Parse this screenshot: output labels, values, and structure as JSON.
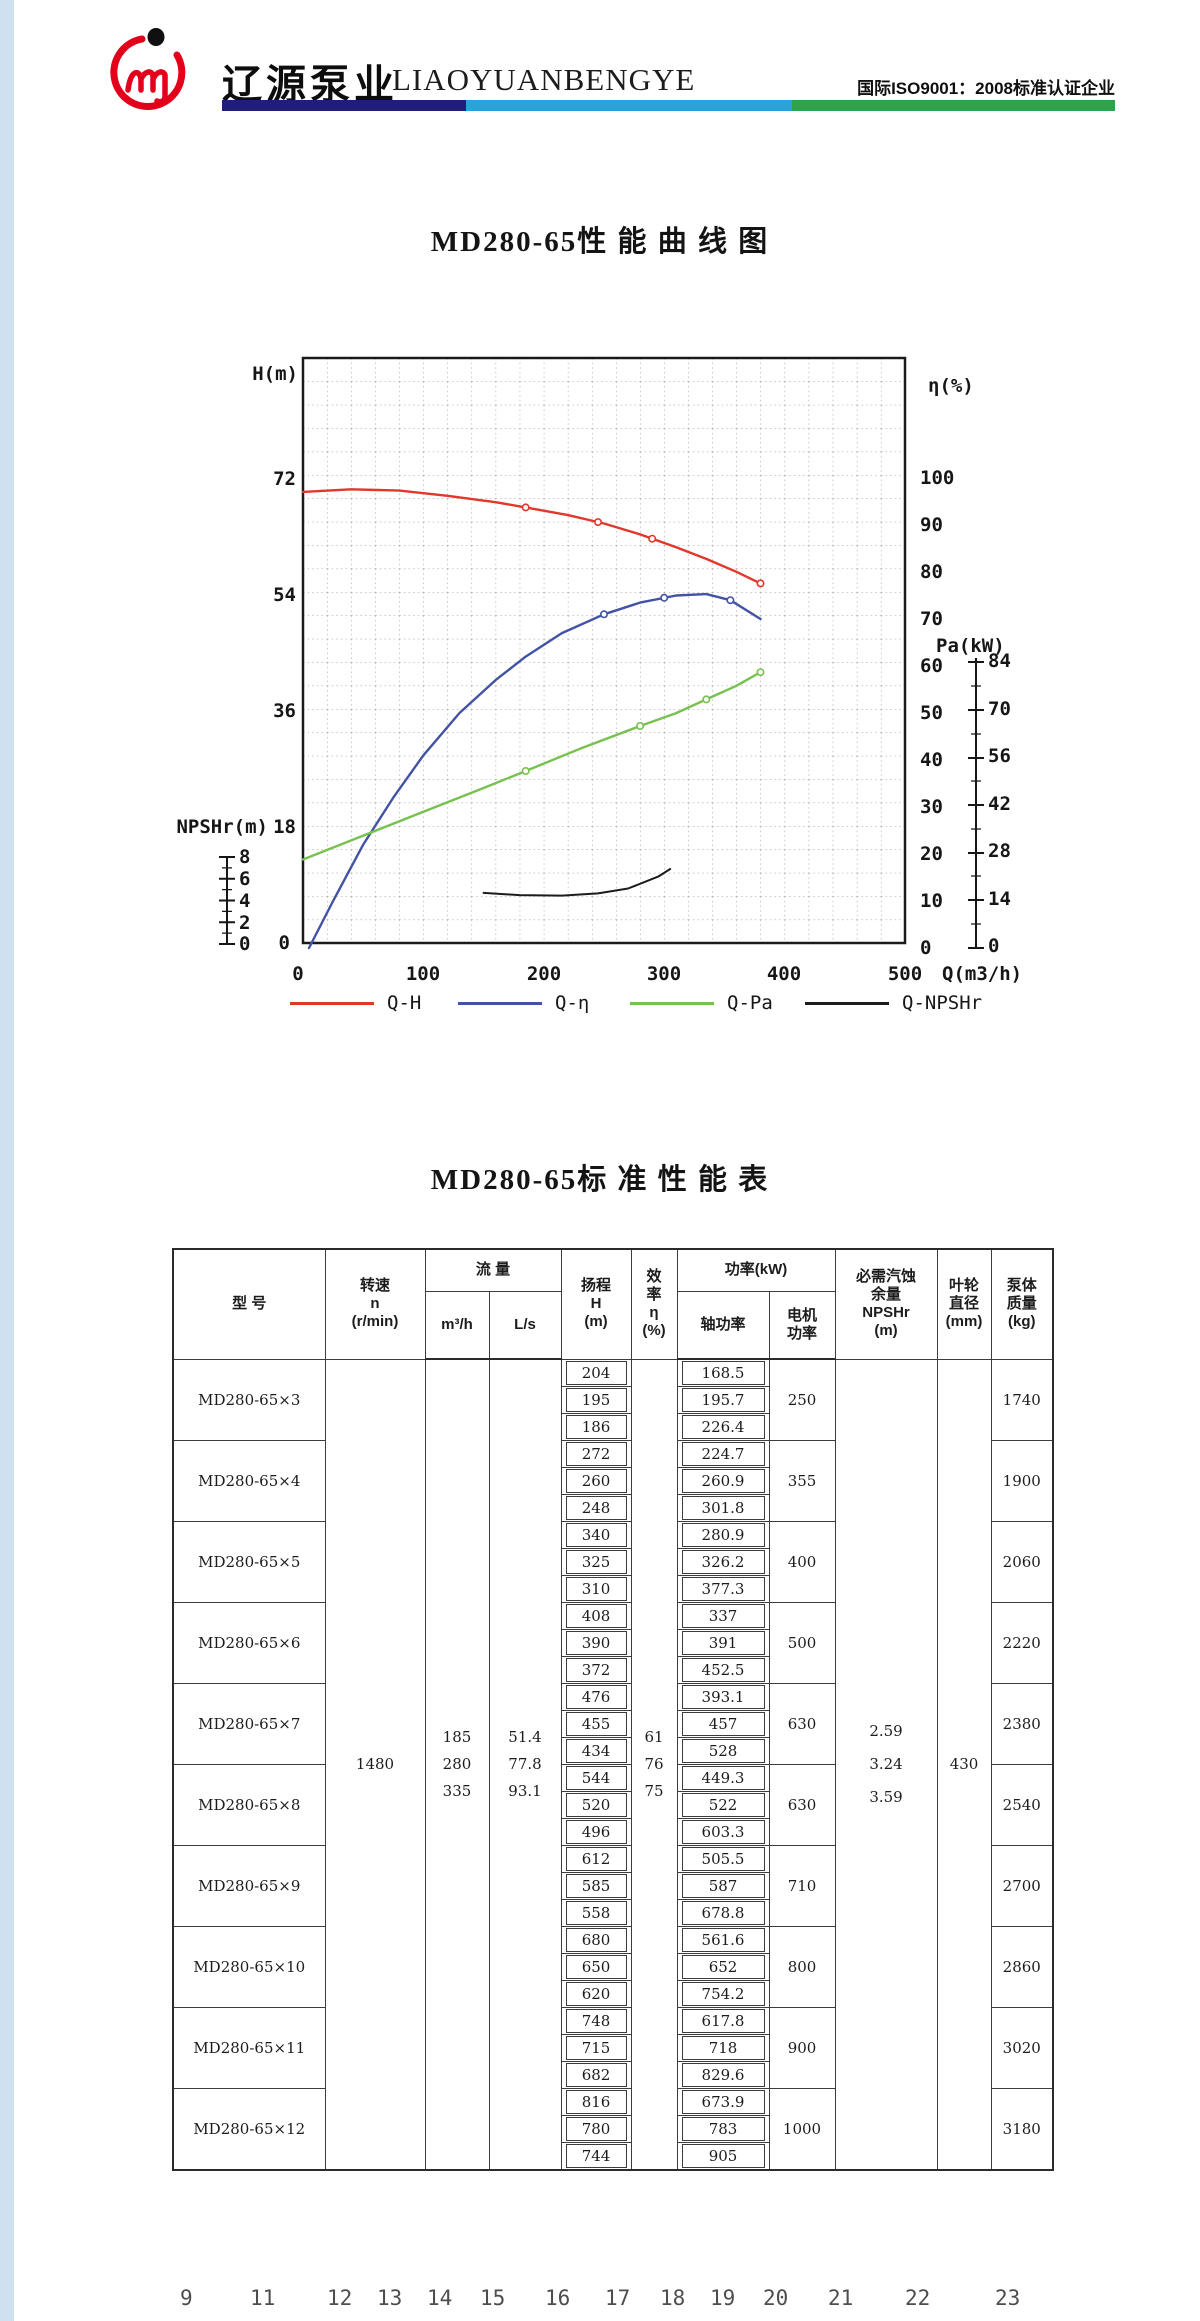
{
  "header": {
    "brand_cn": "辽源泵业",
    "brand_en": "LIAOYUANBENGYE",
    "cert_text": "国际ISO9001：2008标准认证企业",
    "bar_colors": [
      "#211d7b",
      "#28a3dc",
      "#2fa24c"
    ],
    "logo_color": "#e3001b"
  },
  "chart": {
    "title": "MD280-65性 能 曲 线 图",
    "h_axis": {
      "label": "H(m)",
      "ticks": [
        "72",
        "54",
        "36",
        "18",
        "0"
      ]
    },
    "npshr_axis": {
      "label": "NPSHr(m)",
      "ticks": [
        "8",
        "6",
        "4",
        "2",
        "0"
      ]
    },
    "x_axis": {
      "label": "Q(m3/h)",
      "ticks": [
        "0",
        "100",
        "200",
        "300",
        "400",
        "500"
      ]
    },
    "eta_axis": {
      "label": "η(%)",
      "ticks": [
        "100",
        "90",
        "80",
        "70",
        "60",
        "50",
        "40",
        "30",
        "20",
        "10",
        "0"
      ]
    },
    "pa_axis": {
      "label": "Pa(kW)",
      "ticks": [
        "84",
        "70",
        "56",
        "42",
        "28",
        "14",
        "0"
      ]
    },
    "legend": [
      {
        "label": "Q-H",
        "color": "#e0382a"
      },
      {
        "label": "Q-η",
        "color": "#4253a5"
      },
      {
        "label": "Q-Pa",
        "color": "#77c14f"
      },
      {
        "label": "Q-NPSHr",
        "color": "#1c1c1c"
      }
    ]
  },
  "chart_data": {
    "type": "line",
    "title": "MD280-65性 能 曲 线 图",
    "xlabel": "Q(m3/h)",
    "x_range": [
      0,
      500
    ],
    "grid": "dotted",
    "axes": {
      "H": {
        "label": "H(m)",
        "range": [
          0,
          90
        ]
      },
      "eta": {
        "label": "η(%)",
        "range": [
          0,
          100
        ]
      },
      "Pa": {
        "label": "Pa(kW)",
        "range": [
          0,
          84
        ]
      },
      "NPSHr": {
        "label": "NPSHr(m)",
        "range": [
          0,
          8
        ]
      }
    },
    "series": [
      {
        "name": "Q-H",
        "axis": "H",
        "color": "#e0382a",
        "points": [
          [
            0,
            70
          ],
          [
            40,
            70.4
          ],
          [
            80,
            70.2
          ],
          [
            120,
            69.4
          ],
          [
            160,
            68.4
          ],
          [
            185,
            67.6
          ],
          [
            220,
            66.4
          ],
          [
            250,
            65.1
          ],
          [
            280,
            63.4
          ],
          [
            310,
            61.4
          ],
          [
            335,
            59.6
          ],
          [
            360,
            57.6
          ],
          [
            380,
            55.8
          ]
        ],
        "markers": [
          185,
          245,
          290,
          380
        ]
      },
      {
        "name": "Q-η",
        "axis": "eta",
        "color": "#4253a5",
        "points": [
          [
            5,
            0
          ],
          [
            25,
            10
          ],
          [
            50,
            22
          ],
          [
            75,
            32
          ],
          [
            100,
            41
          ],
          [
            130,
            50
          ],
          [
            160,
            57
          ],
          [
            185,
            62
          ],
          [
            215,
            67
          ],
          [
            250,
            71
          ],
          [
            280,
            73.5
          ],
          [
            310,
            75
          ],
          [
            335,
            75.3
          ],
          [
            355,
            74
          ],
          [
            380,
            70
          ]
        ],
        "markers": [
          250,
          300,
          355
        ]
      },
      {
        "name": "Q-Pa",
        "axis": "Pa",
        "color": "#77c14f",
        "points": [
          [
            0,
            26
          ],
          [
            50,
            33
          ],
          [
            100,
            40
          ],
          [
            150,
            47
          ],
          [
            185,
            52
          ],
          [
            230,
            58.5
          ],
          [
            280,
            65.2
          ],
          [
            310,
            69
          ],
          [
            335,
            73
          ],
          [
            360,
            77
          ],
          [
            380,
            81
          ]
        ],
        "markers": [
          185,
          280,
          335,
          380
        ]
      },
      {
        "name": "Q-NPSHr",
        "axis": "NPSHr",
        "color": "#1c1c1c",
        "points": [
          [
            150,
            4.7
          ],
          [
            180,
            4.5
          ],
          [
            215,
            4.45
          ],
          [
            245,
            4.65
          ],
          [
            270,
            5.1
          ],
          [
            295,
            6.2
          ],
          [
            305,
            6.9
          ]
        ],
        "markers": []
      }
    ]
  },
  "table": {
    "title": "MD280-65标 准 性 能 表",
    "headers": {
      "model": "型 号",
      "speed": [
        "转速",
        "n",
        "(r/min)"
      ],
      "flow": "流 量",
      "flow_m3h": "m³/h",
      "flow_ls": "L/s",
      "head": [
        "扬程",
        "H",
        "(m)"
      ],
      "eff": [
        "效",
        "率",
        "η",
        "(%)"
      ],
      "power": "功率(kW)",
      "shaft": "轴功率",
      "motor": [
        "电机",
        "功率"
      ],
      "npshr": [
        "必需汽蚀",
        "余量",
        "NPSHr",
        "(m)"
      ],
      "impeller": [
        "叶轮",
        "直径",
        "(mm)"
      ],
      "mass": [
        "泵体",
        "质量",
        "(kg)"
      ]
    },
    "shared": {
      "speed": "1480",
      "flow_m3h": [
        "185",
        "280",
        "335"
      ],
      "flow_ls": [
        "51.4",
        "77.8",
        "93.1"
      ],
      "eff": [
        "61",
        "76",
        "75"
      ],
      "npshr": [
        "2.59",
        "3.24",
        "3.59"
      ],
      "impeller": "430"
    },
    "groups": [
      {
        "model": "MD280-65×3",
        "head": [
          "204",
          "195",
          "186"
        ],
        "shaft": [
          "168.5",
          "195.7",
          "226.4"
        ],
        "motor": "250",
        "mass": "1740"
      },
      {
        "model": "MD280-65×4",
        "head": [
          "272",
          "260",
          "248"
        ],
        "shaft": [
          "224.7",
          "260.9",
          "301.8"
        ],
        "motor": "355",
        "mass": "1900"
      },
      {
        "model": "MD280-65×5",
        "head": [
          "340",
          "325",
          "310"
        ],
        "shaft": [
          "280.9",
          "326.2",
          "377.3"
        ],
        "motor": "400",
        "mass": "2060"
      },
      {
        "model": "MD280-65×6",
        "head": [
          "408",
          "390",
          "372"
        ],
        "shaft": [
          "337",
          "391",
          "452.5"
        ],
        "motor": "500",
        "mass": "2220"
      },
      {
        "model": "MD280-65×7",
        "head": [
          "476",
          "455",
          "434"
        ],
        "shaft": [
          "393.1",
          "457",
          "528"
        ],
        "motor": "630",
        "mass": "2380"
      },
      {
        "model": "MD280-65×8",
        "head": [
          "544",
          "520",
          "496"
        ],
        "shaft": [
          "449.3",
          "522",
          "603.3"
        ],
        "motor": "630",
        "mass": "2540"
      },
      {
        "model": "MD280-65×9",
        "head": [
          "612",
          "585",
          "558"
        ],
        "shaft": [
          "505.5",
          "587",
          "678.8"
        ],
        "motor": "710",
        "mass": "2700"
      },
      {
        "model": "MD280-65×10",
        "head": [
          "680",
          "650",
          "620"
        ],
        "shaft": [
          "561.6",
          "652",
          "754.2"
        ],
        "motor": "800",
        "mass": "2860"
      },
      {
        "model": "MD280-65×11",
        "head": [
          "748",
          "715",
          "682"
        ],
        "shaft": [
          "617.8",
          "718",
          "829.6"
        ],
        "motor": "900",
        "mass": "3020"
      },
      {
        "model": "MD280-65×12",
        "head": [
          "816",
          "780",
          "744"
        ],
        "shaft": [
          "673.9",
          "783",
          "905"
        ],
        "motor": "1000",
        "mass": "3180"
      }
    ]
  },
  "footer": {
    "numbers": [
      "9",
      "11",
      "12",
      "13",
      "14",
      "15",
      "16",
      "17",
      "18",
      "19",
      "20",
      "21",
      "22",
      "23"
    ]
  }
}
